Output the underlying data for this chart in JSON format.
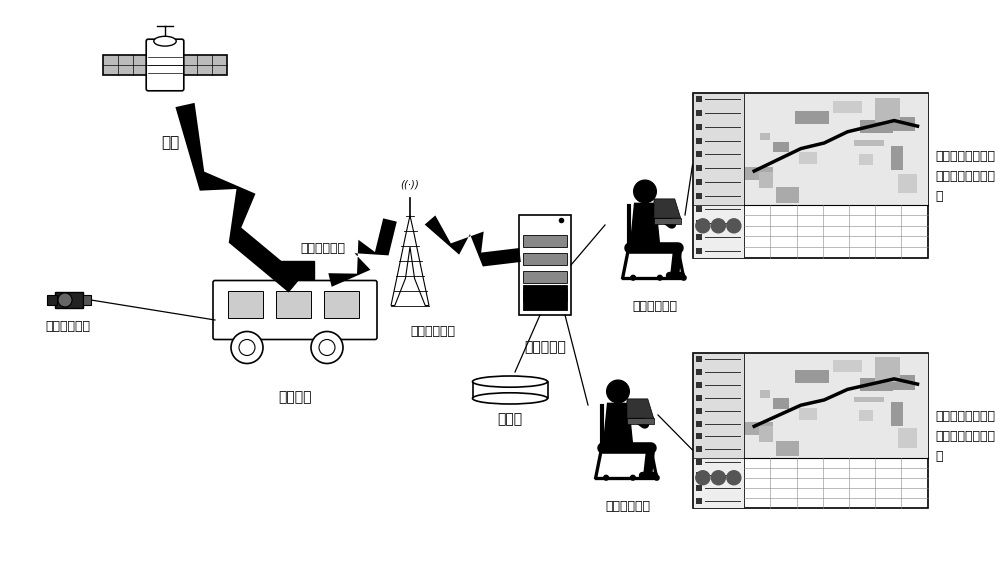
{
  "bg_color": "#ffffff",
  "labels": {
    "satellite": "卫星",
    "bus_terminal": "车载终端设备",
    "radio_transmitter": "无线电发射器",
    "center_server": "中心服务器",
    "database": "数据库",
    "image_capture": "图像数据采集",
    "variable_bus": "可变巴士",
    "dispatcher": "机房调度人员",
    "display_text1": "同时显示多台车，",
    "display_text2": "对车辆进行有效调",
    "display_text3": "度"
  }
}
